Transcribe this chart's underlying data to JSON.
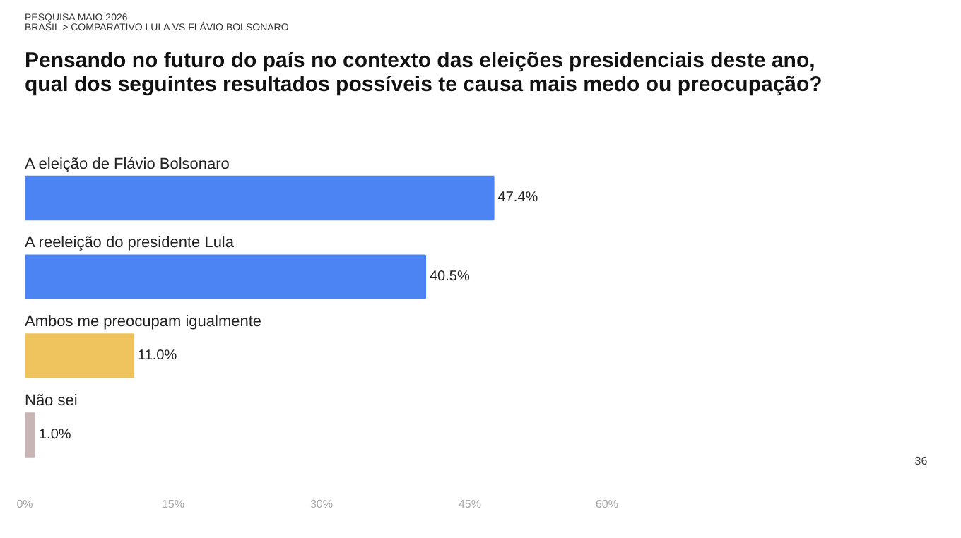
{
  "chart_data": {
    "type": "bar",
    "orientation": "horizontal",
    "title": "Pensando no futuro do país no contexto das eleições presidenciais deste ano, qual dos seguintes resultados possíveis te causa mais medo ou preocupação?",
    "subtitle": "PESQUISA MAIO 2026\nBRASIL > COMPARATIVO LULA VS FLÁVIO BOLSONARO",
    "categories": [
      "A eleição de Flávio Bolsonaro",
      "A reeleição do presidente Lula",
      "Ambos me preocupam igualmente",
      "Não sei"
    ],
    "values": [
      47.4,
      40.5,
      11.0,
      1.0
    ],
    "colors": [
      "#4c84f4",
      "#4c84f4",
      "#f0c45c",
      "#c8b4b4"
    ],
    "value_labels": [
      "47.4%",
      "40.5%",
      "11.0%",
      "1.0%"
    ],
    "xlim": [
      0,
      60
    ],
    "xticks": [
      {
        "value": 0,
        "label": "0%"
      },
      {
        "value": 15,
        "label": "15%"
      },
      {
        "value": 30,
        "label": "30%"
      },
      {
        "value": 45,
        "label": "45%"
      },
      {
        "value": 60,
        "label": "60%"
      }
    ],
    "grid": false,
    "annotations": [
      "36"
    ]
  }
}
